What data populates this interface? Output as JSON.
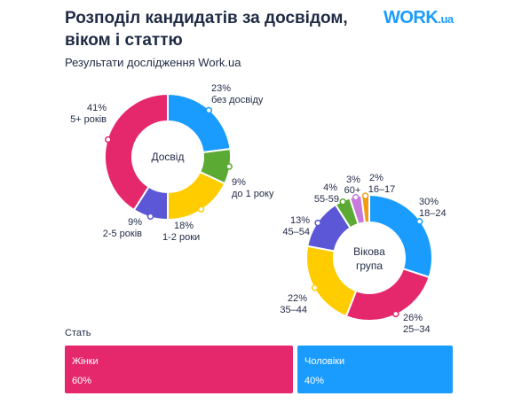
{
  "header": {
    "title_line1": "Розподіл кандидатів за досвідом,",
    "title_line2": "віком і статтю",
    "subtitle": "Результати дослідження Work.ua",
    "logo_main": "WORK",
    "logo_suffix": ".ua"
  },
  "colors": {
    "pink": "#e5286c",
    "blue": "#1a9cff",
    "green": "#5aaa34",
    "yellow": "#ffcc00",
    "purple": "#5b57d6",
    "violet": "#c77ad9",
    "orange": "#f39c12"
  },
  "chart_data": [
    {
      "type": "pie",
      "center_label": "Досвід",
      "slices": [
        {
          "label": "без досвіду",
          "value": 23,
          "pct": "23%",
          "color": "#1a9cff"
        },
        {
          "label": "до 1 року",
          "value": 9,
          "pct": "9%",
          "color": "#5aaa34"
        },
        {
          "label": "1-2 роки",
          "value": 18,
          "pct": "18%",
          "color": "#ffcc00"
        },
        {
          "label": "2-5 років",
          "value": 9,
          "pct": "9%",
          "color": "#5b57d6"
        },
        {
          "label": "5+ років",
          "value": 41,
          "pct": "41%",
          "color": "#e5286c"
        }
      ]
    },
    {
      "type": "pie",
      "center_label_line1": "Вікова",
      "center_label_line2": "група",
      "slices": [
        {
          "label": "18–24",
          "value": 30,
          "pct": "30%",
          "color": "#1a9cff"
        },
        {
          "label": "25–34",
          "value": 26,
          "pct": "26%",
          "color": "#e5286c"
        },
        {
          "label": "35–44",
          "value": 22,
          "pct": "22%",
          "color": "#ffcc00"
        },
        {
          "label": "45–54",
          "value": 13,
          "pct": "13%",
          "color": "#5b57d6"
        },
        {
          "label": "55-59",
          "value": 4,
          "pct": "4%",
          "color": "#5aaa34"
        },
        {
          "label": "60+",
          "value": 3,
          "pct": "3%",
          "color": "#c77ad9"
        },
        {
          "label": "16–17",
          "value": 2,
          "pct": "2%",
          "color": "#f39c12"
        }
      ]
    },
    {
      "type": "bar",
      "title": "Стать",
      "categories": [
        "Жінки",
        "Чоловіки"
      ],
      "values": [
        60,
        40
      ],
      "pcts": [
        "60%",
        "40%"
      ]
    }
  ]
}
